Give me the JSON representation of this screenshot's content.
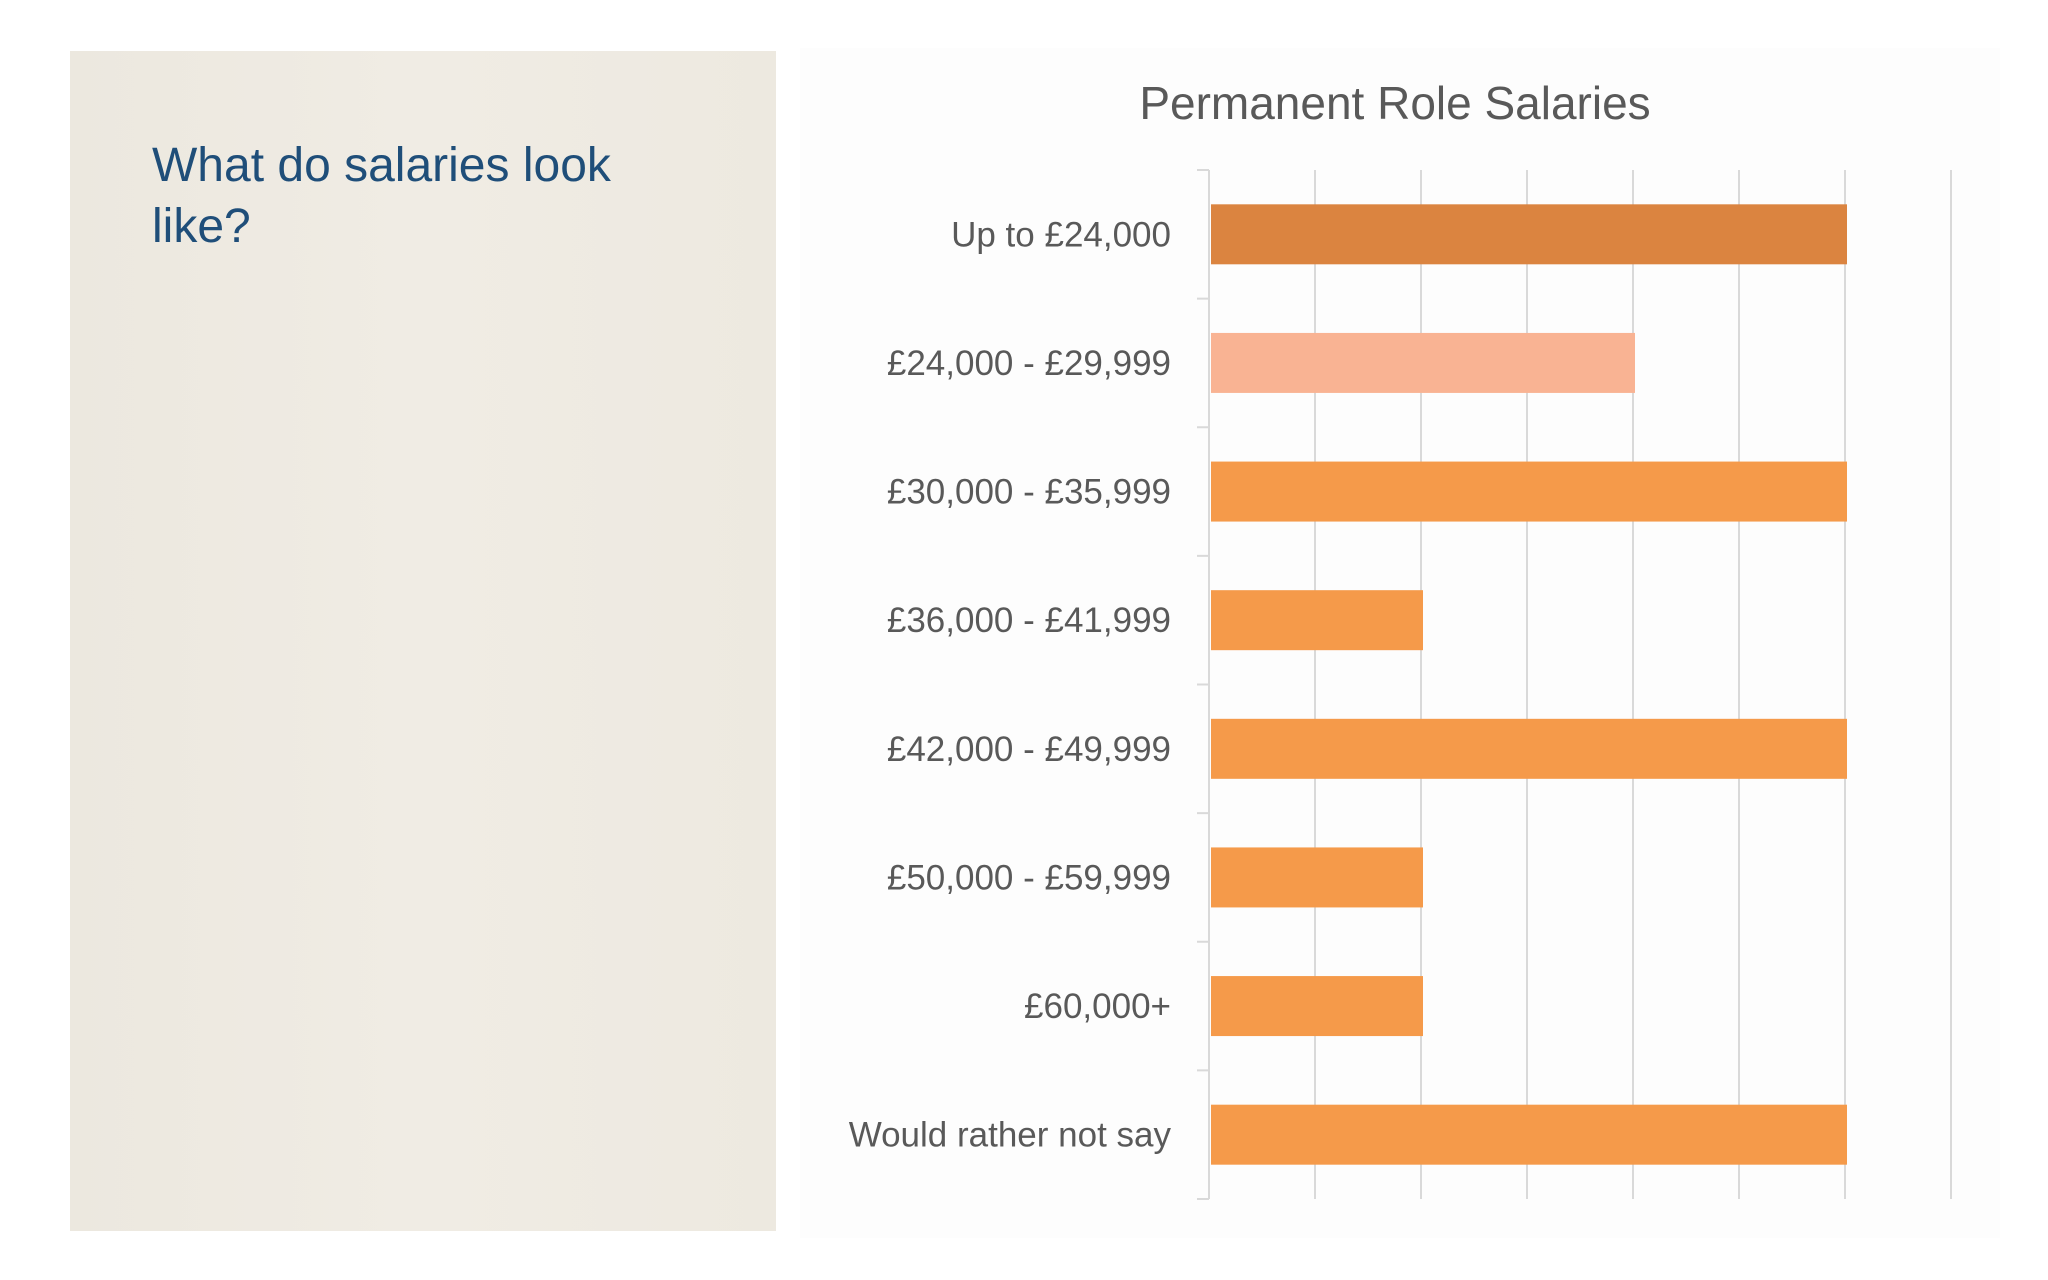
{
  "slide": {
    "heading": "What do salaries look like?"
  },
  "chart_data": {
    "type": "bar",
    "orientation": "horizontal",
    "title": "Permanent Role Salaries",
    "categories": [
      "Up to £24,000",
      "£24,000 - £29,999",
      "£30,000 - £35,999",
      "£36,000 - £41,999",
      "£42,000 - £49,999",
      "£50,000 - £59,999",
      "£60,000+",
      "Would rather not say"
    ],
    "values": [
      6,
      4,
      6,
      2,
      6,
      2,
      2,
      6
    ],
    "xlim": [
      0,
      7
    ],
    "tick_labels_shown": false,
    "grid": true,
    "colors": {
      "default": "#f59a4a",
      "highlight_first": "#db8440",
      "highlight_second": "#f9b393",
      "gridline": "#d9d9d9"
    }
  }
}
